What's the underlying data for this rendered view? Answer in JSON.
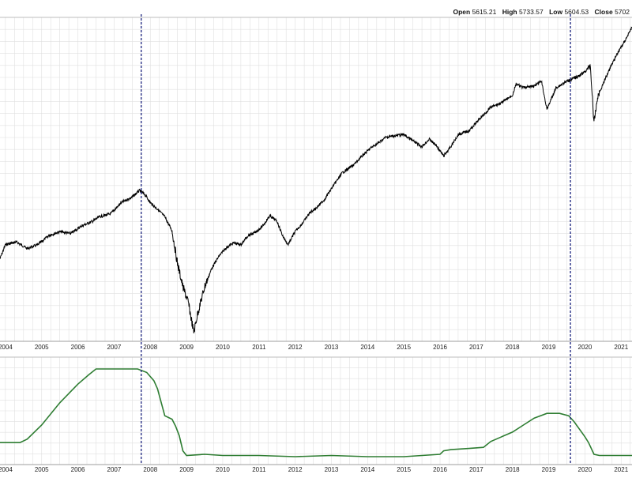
{
  "ohlc": {
    "open_label": "Open",
    "open_value": "5615.21",
    "high_label": "High",
    "high_value": "5733.57",
    "low_label": "Low",
    "low_value": "5604.53",
    "close_label": "Close",
    "close_value": "5702"
  },
  "chart_data": [
    {
      "type": "line",
      "title": "",
      "xlabel": "",
      "ylabel": "",
      "x_ticks": [
        "2004",
        "2005",
        "2006",
        "2007",
        "2008",
        "2009",
        "2010",
        "2011",
        "2012",
        "2013",
        "2014",
        "2015",
        "2016",
        "2017",
        "2018",
        "2019",
        "2020",
        "2021"
      ],
      "x_range": [
        2003.85,
        2021.3
      ],
      "grid": true,
      "series": [
        {
          "x": [
            2003.85,
            2004.0,
            2004.3,
            2004.6,
            2004.9,
            2005.2,
            2005.5,
            2005.8,
            2006.1,
            2006.4,
            2006.6,
            2006.9,
            2007.2,
            2007.5,
            2007.7,
            2007.85,
            2008.0,
            2008.2,
            2008.4,
            2008.6,
            2008.75,
            2008.9,
            2009.05,
            2009.2,
            2009.3,
            2009.5,
            2009.7,
            2009.9,
            2010.1,
            2010.3,
            2010.5,
            2010.7,
            2010.9,
            2011.1,
            2011.3,
            2011.5,
            2011.65,
            2011.8,
            2012.0,
            2012.2,
            2012.4,
            2012.6,
            2012.8,
            2013.0,
            2013.3,
            2013.6,
            2013.9,
            2014.1,
            2014.3,
            2014.5,
            2014.8,
            2015.0,
            2015.3,
            2015.5,
            2015.7,
            2015.9,
            2016.1,
            2016.3,
            2016.5,
            2016.8,
            2017.1,
            2017.4,
            2017.7,
            2018.0,
            2018.1,
            2018.3,
            2018.6,
            2018.8,
            2018.95,
            2019.2,
            2019.5,
            2019.8,
            2020.0,
            2020.15,
            2020.25,
            2020.35,
            2020.5,
            2020.7,
            2020.9,
            2021.1,
            2021.3
          ],
          "values": [
            345,
            330,
            327,
            334,
            330,
            320,
            316,
            318,
            310,
            305,
            300,
            297,
            285,
            279,
            272,
            276,
            285,
            292,
            300,
            315,
            350,
            375,
            392,
            424,
            405,
            375,
            355,
            342,
            333,
            328,
            330,
            320,
            317,
            310,
            299,
            305,
            320,
            330,
            316,
            307,
            296,
            290,
            282,
            270,
            253,
            245,
            233,
            226,
            221,
            215,
            213,
            212,
            220,
            225,
            217,
            224,
            235,
            225,
            212,
            208,
            195,
            183,
            178,
            170,
            158,
            162,
            160,
            155,
            185,
            162,
            155,
            150,
            145,
            138,
            200,
            172,
            158,
            140,
            125,
            112,
            97
          ]
        },
        {
          "name": "",
          "x": [
            2003.85,
            2004.4,
            2004.6,
            2005.0,
            2005.5,
            2006.0,
            2006.3,
            2006.5,
            2007.0,
            2007.5,
            2007.65,
            2007.9,
            2008.1,
            2008.2,
            2008.4,
            2008.6,
            2008.7,
            2008.8,
            2008.9,
            2009.0,
            2009.5,
            2010.0,
            2010.5,
            2011.0,
            2012.0,
            2013.0,
            2014.0,
            2015.0,
            2016.0,
            2016.1,
            2016.3,
            2016.8,
            2017.2,
            2017.4,
            2017.7,
            2018.0,
            2018.3,
            2018.6,
            2018.95,
            2019.3,
            2019.55,
            2019.7,
            2020.0,
            2020.1,
            2020.25,
            2020.4,
            2021.3
          ],
          "values": [
            0.12,
            0.12,
            0.15,
            0.27,
            0.46,
            0.62,
            0.7,
            0.75,
            0.75,
            0.75,
            0.75,
            0.72,
            0.65,
            0.58,
            0.35,
            0.32,
            0.26,
            0.18,
            0.05,
            0.01,
            0.02,
            0.01,
            0.01,
            0.01,
            0.0,
            0.01,
            0.0,
            0.0,
            0.02,
            0.05,
            0.06,
            0.07,
            0.08,
            0.13,
            0.17,
            0.21,
            0.27,
            0.33,
            0.37,
            0.37,
            0.35,
            0.3,
            0.17,
            0.12,
            0.02,
            0.01,
            0.01
          ]
        }
      ],
      "ylim_lower": [
        0,
        1
      ],
      "vlines": [
        2007.75,
        2019.6
      ],
      "colors": {
        "price": "#000000",
        "indicator": "#2e7d32",
        "vline": "#1a237e",
        "grid": "#e0e0e0"
      }
    }
  ]
}
